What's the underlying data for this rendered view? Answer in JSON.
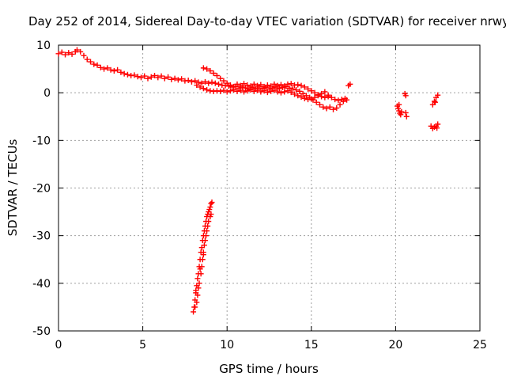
{
  "chart_data": {
    "type": "scatter",
    "title": "Day 252 of 2014, Sidereal Day-to-day VTEC variation (SDTVAR) for receiver nrwy",
    "xlabel": "GPS time / hours",
    "ylabel": "SDTVAR / TECUs",
    "xlim": [
      0,
      25
    ],
    "ylim": [
      -50,
      10
    ],
    "xticks": [
      0,
      5,
      10,
      15,
      20,
      25
    ],
    "yticks": [
      10,
      0,
      -10,
      -20,
      -30,
      -40,
      -50
    ],
    "grid": true,
    "marker": "+",
    "color": "#ff0000",
    "series": [
      {
        "name": "main_trend",
        "points": [
          [
            0.0,
            8.2
          ],
          [
            0.2,
            8.5
          ],
          [
            0.4,
            8.0
          ],
          [
            0.6,
            8.4
          ],
          [
            0.8,
            8.1
          ],
          [
            1.0,
            8.6
          ],
          [
            1.1,
            9.0
          ],
          [
            1.3,
            8.6
          ],
          [
            1.5,
            7.8
          ],
          [
            1.7,
            7.0
          ],
          [
            1.9,
            6.5
          ],
          [
            2.1,
            6.0
          ],
          [
            2.3,
            5.8
          ],
          [
            2.5,
            5.3
          ],
          [
            2.7,
            5.0
          ],
          [
            2.9,
            5.2
          ],
          [
            3.1,
            4.8
          ],
          [
            3.3,
            4.6
          ],
          [
            3.5,
            4.8
          ],
          [
            3.7,
            4.3
          ],
          [
            3.9,
            4.0
          ],
          [
            4.1,
            3.8
          ],
          [
            4.3,
            3.6
          ],
          [
            4.5,
            3.7
          ],
          [
            4.7,
            3.4
          ],
          [
            4.9,
            3.2
          ],
          [
            5.1,
            3.5
          ],
          [
            5.3,
            3.0
          ],
          [
            5.5,
            3.3
          ],
          [
            5.7,
            3.6
          ],
          [
            5.9,
            3.2
          ],
          [
            6.1,
            3.5
          ],
          [
            6.3,
            3.0
          ],
          [
            6.5,
            3.3
          ],
          [
            6.7,
            2.8
          ],
          [
            6.9,
            3.0
          ],
          [
            7.1,
            2.7
          ],
          [
            7.3,
            2.9
          ],
          [
            7.5,
            2.5
          ],
          [
            7.7,
            2.6
          ],
          [
            7.9,
            2.3
          ],
          [
            8.1,
            2.5
          ],
          [
            8.3,
            2.2
          ],
          [
            8.5,
            2.0
          ],
          [
            8.7,
            2.3
          ],
          [
            8.9,
            2.0
          ],
          [
            9.1,
            2.2
          ],
          [
            9.3,
            2.0
          ],
          [
            9.5,
            1.8
          ],
          [
            9.7,
            1.6
          ],
          [
            9.9,
            1.5
          ],
          [
            10.1,
            1.4
          ],
          [
            10.3,
            1.2
          ],
          [
            10.5,
            1.3
          ],
          [
            10.7,
            1.0
          ],
          [
            10.9,
            1.2
          ],
          [
            11.1,
            1.0
          ],
          [
            11.3,
            0.8
          ],
          [
            11.5,
            1.1
          ],
          [
            11.7,
            0.9
          ],
          [
            11.9,
            1.2
          ],
          [
            12.1,
            0.9
          ],
          [
            12.3,
            1.1
          ],
          [
            12.5,
            0.8
          ],
          [
            12.7,
            1.0
          ],
          [
            12.9,
            1.2
          ],
          [
            13.1,
            0.9
          ],
          [
            13.3,
            1.1
          ],
          [
            13.5,
            1.3
          ],
          [
            13.7,
            1.0
          ],
          [
            13.9,
            0.8
          ],
          [
            14.1,
            0.6
          ],
          [
            14.3,
            0.3
          ],
          [
            14.5,
            -0.2
          ],
          [
            14.7,
            -0.6
          ],
          [
            14.9,
            -1.0
          ],
          [
            15.1,
            -1.5
          ],
          [
            15.3,
            -2.0
          ],
          [
            15.5,
            -2.5
          ],
          [
            15.7,
            -3.0
          ],
          [
            15.9,
            -3.3
          ],
          [
            16.1,
            -3.0
          ],
          [
            16.3,
            -3.5
          ],
          [
            16.5,
            -3.2
          ],
          [
            16.7,
            -2.5
          ],
          [
            16.9,
            -1.8
          ],
          [
            17.1,
            -1.5
          ]
        ]
      },
      {
        "name": "upper_branch",
        "points": [
          [
            8.6,
            5.2
          ],
          [
            8.8,
            5.0
          ],
          [
            9.0,
            4.6
          ],
          [
            9.2,
            4.1
          ],
          [
            9.4,
            3.6
          ],
          [
            9.6,
            3.0
          ],
          [
            9.8,
            2.5
          ],
          [
            10.0,
            2.0
          ],
          [
            10.2,
            1.6
          ],
          [
            10.4,
            1.3
          ],
          [
            10.6,
            1.8
          ],
          [
            10.8,
            1.5
          ],
          [
            11.0,
            1.9
          ],
          [
            11.2,
            1.6
          ],
          [
            11.4,
            1.4
          ],
          [
            11.6,
            1.8
          ],
          [
            11.8,
            1.5
          ],
          [
            12.0,
            1.7
          ],
          [
            12.2,
            1.3
          ],
          [
            12.4,
            1.6
          ],
          [
            12.6,
            1.4
          ],
          [
            12.8,
            1.8
          ],
          [
            13.0,
            1.5
          ],
          [
            13.2,
            1.7
          ],
          [
            13.4,
            1.4
          ],
          [
            13.6,
            1.8
          ],
          [
            13.8,
            1.9
          ],
          [
            14.0,
            1.6
          ],
          [
            14.2,
            1.7
          ],
          [
            14.4,
            1.5
          ],
          [
            14.6,
            1.2
          ],
          [
            14.8,
            0.8
          ],
          [
            15.0,
            0.4
          ],
          [
            15.2,
            0.0
          ],
          [
            15.4,
            -0.4
          ],
          [
            15.6,
            -0.8
          ],
          [
            15.8,
            -1.0
          ],
          [
            16.0,
            -0.8
          ],
          [
            16.2,
            -1.0
          ],
          [
            16.4,
            -1.4
          ],
          [
            16.6,
            -1.6
          ],
          [
            16.8,
            -1.4
          ],
          [
            17.0,
            -1.2
          ],
          [
            17.2,
            1.5
          ],
          [
            17.3,
            1.8
          ]
        ]
      },
      {
        "name": "lower_branch",
        "points": [
          [
            8.2,
            1.6
          ],
          [
            8.4,
            1.2
          ],
          [
            8.6,
            0.9
          ],
          [
            8.8,
            0.6
          ],
          [
            9.0,
            0.4
          ],
          [
            9.2,
            0.3
          ],
          [
            9.4,
            0.4
          ],
          [
            9.6,
            0.3
          ],
          [
            9.8,
            0.5
          ],
          [
            10.0,
            0.2
          ],
          [
            10.2,
            0.4
          ],
          [
            10.4,
            0.6
          ],
          [
            10.6,
            0.3
          ],
          [
            10.8,
            0.5
          ],
          [
            11.0,
            0.2
          ],
          [
            11.2,
            0.4
          ],
          [
            11.4,
            0.6
          ],
          [
            11.6,
            0.3
          ],
          [
            11.8,
            0.5
          ],
          [
            12.0,
            0.2
          ],
          [
            12.2,
            0.4
          ],
          [
            12.4,
            0.1
          ],
          [
            12.6,
            0.3
          ],
          [
            12.8,
            0.5
          ],
          [
            13.0,
            0.2
          ],
          [
            13.2,
            0.0
          ],
          [
            13.4,
            0.2
          ],
          [
            13.6,
            0.4
          ],
          [
            13.8,
            0.1
          ],
          [
            14.0,
            -0.3
          ],
          [
            14.2,
            -0.6
          ],
          [
            14.4,
            -0.9
          ],
          [
            14.6,
            -1.2
          ],
          [
            14.8,
            -1.4
          ],
          [
            15.0,
            -1.3
          ],
          [
            15.2,
            -1.0
          ],
          [
            15.4,
            -0.6
          ],
          [
            15.6,
            -0.2
          ],
          [
            15.8,
            0.2
          ],
          [
            16.0,
            -0.5
          ]
        ]
      },
      {
        "name": "spike",
        "points": [
          [
            8.0,
            -46
          ],
          [
            8.05,
            -45
          ],
          [
            8.1,
            -43.5
          ],
          [
            8.15,
            -42
          ],
          [
            8.2,
            -40.5
          ],
          [
            8.25,
            -39
          ],
          [
            8.3,
            -38
          ],
          [
            8.35,
            -36.5
          ],
          [
            8.4,
            -35
          ],
          [
            8.45,
            -33.5
          ],
          [
            8.5,
            -32.5
          ],
          [
            8.55,
            -31
          ],
          [
            8.6,
            -30
          ],
          [
            8.65,
            -29
          ],
          [
            8.7,
            -28
          ],
          [
            8.75,
            -27
          ],
          [
            8.8,
            -26
          ],
          [
            8.85,
            -25.5
          ],
          [
            8.9,
            -25
          ],
          [
            8.95,
            -24.5
          ],
          [
            9.0,
            -24
          ],
          [
            9.05,
            -23.3
          ],
          [
            9.1,
            -23.0
          ],
          [
            8.2,
            -44
          ],
          [
            8.25,
            -42.5
          ],
          [
            8.3,
            -41
          ],
          [
            8.35,
            -40
          ],
          [
            8.45,
            -38
          ],
          [
            8.5,
            -36.5
          ],
          [
            8.55,
            -35
          ],
          [
            8.6,
            -33.5
          ],
          [
            8.65,
            -32
          ],
          [
            8.7,
            -31
          ],
          [
            8.75,
            -30
          ],
          [
            8.8,
            -29
          ],
          [
            8.85,
            -28
          ],
          [
            8.9,
            -27
          ],
          [
            9.0,
            -26
          ],
          [
            9.05,
            -25.5
          ],
          [
            8.1,
            -45
          ],
          [
            8.15,
            -41.5
          ],
          [
            8.4,
            -37
          ],
          [
            8.6,
            -34
          ]
        ]
      },
      {
        "name": "late_clusters",
        "points": [
          [
            20.1,
            -2.8
          ],
          [
            20.15,
            -3.3
          ],
          [
            20.2,
            -3.8
          ],
          [
            20.25,
            -4.3
          ],
          [
            20.3,
            -4.6
          ],
          [
            20.35,
            -4.0
          ],
          [
            20.2,
            -2.5
          ],
          [
            20.6,
            -4.2
          ],
          [
            20.65,
            -5.0
          ],
          [
            20.55,
            -0.2
          ],
          [
            20.6,
            -0.6
          ],
          [
            22.2,
            -2.5
          ],
          [
            22.3,
            -1.8
          ],
          [
            22.4,
            -1.0
          ],
          [
            22.5,
            -0.5
          ],
          [
            22.35,
            -2.0
          ],
          [
            22.1,
            -7.0
          ],
          [
            22.2,
            -7.5
          ],
          [
            22.3,
            -7.2
          ],
          [
            22.4,
            -7.0
          ],
          [
            22.5,
            -6.6
          ],
          [
            22.45,
            -7.4
          ]
        ]
      }
    ]
  }
}
